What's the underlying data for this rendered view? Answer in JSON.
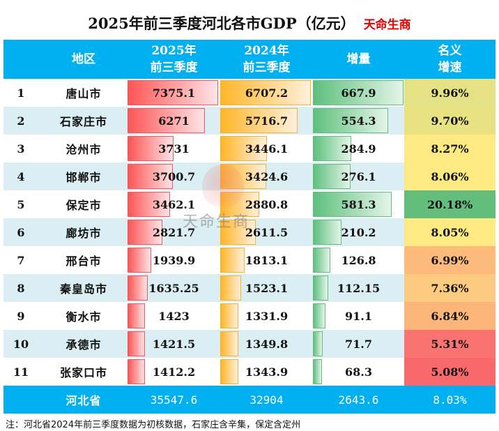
{
  "title": "2025年前三季度河北各市GDP（亿元）",
  "brand": "天命生商",
  "header": {
    "region": "地区",
    "gdp2025_line1": "2025年",
    "gdp2025_line2": "前三季度",
    "gdp2024_line1": "2024年",
    "gdp2024_line2": "前三季度",
    "increase": "增量",
    "growth_line1": "名义",
    "growth_line2": "增速"
  },
  "rows": [
    {
      "rank": "1",
      "city": "唐山市",
      "gdp2025": "7375.1",
      "gdp2024": "6707.2",
      "increase": "667.9",
      "growth": "9.96%",
      "growth_color": "#e5e285"
    },
    {
      "rank": "2",
      "city": "石家庄市",
      "gdp2025": "6271",
      "gdp2024": "5716.7",
      "increase": "554.3",
      "growth": "9.70%",
      "growth_color": "#e8e283"
    },
    {
      "rank": "3",
      "city": "沧州市",
      "gdp2025": "3731",
      "gdp2024": "3446.1",
      "increase": "284.9",
      "growth": "8.27%",
      "growth_color": "#feea83"
    },
    {
      "rank": "4",
      "city": "邯郸市",
      "gdp2025": "3700.7",
      "gdp2024": "3424.6",
      "increase": "276.1",
      "growth": "8.06%",
      "growth_color": "#feea83"
    },
    {
      "rank": "5",
      "city": "保定市",
      "gdp2025": "3462.1",
      "gdp2024": "2880.8",
      "increase": "581.3",
      "growth": "20.18%",
      "growth_color": "#63be7b"
    },
    {
      "rank": "6",
      "city": "廊坊市",
      "gdp2025": "2821.7",
      "gdp2024": "2611.5",
      "increase": "210.2",
      "growth": "8.05%",
      "growth_color": "#feea83"
    },
    {
      "rank": "7",
      "city": "邢台市",
      "gdp2025": "1939.9",
      "gdp2024": "1813.1",
      "increase": "126.8",
      "growth": "6.99%",
      "growth_color": "#fcbb7b"
    },
    {
      "rank": "8",
      "city": "秦皇岛市",
      "gdp2025": "1635.25",
      "gdp2024": "1523.1",
      "increase": "112.15",
      "growth": "7.36%",
      "growth_color": "#fdcb7f"
    },
    {
      "rank": "9",
      "city": "衡水市",
      "gdp2025": "1423",
      "gdp2024": "1331.9",
      "increase": "91.1",
      "growth": "6.84%",
      "growth_color": "#fcb67a"
    },
    {
      "rank": "10",
      "city": "承德市",
      "gdp2025": "1421.5",
      "gdp2024": "1349.8",
      "increase": "71.7",
      "growth": "5.31%",
      "growth_color": "#f97370"
    },
    {
      "rank": "11",
      "city": "张家口市",
      "gdp2025": "1412.2",
      "gdp2024": "1343.9",
      "increase": "68.3",
      "growth": "5.08%",
      "growth_color": "#f8696b"
    }
  ],
  "total": {
    "region": "河北省",
    "gdp2025": "35547.6",
    "gdp2024": "32904",
    "increase": "2643.6",
    "growth": "8.03%"
  },
  "note": "注：河北省2024年前三季度数据为初核数据，石家庄含辛集，保定含定州",
  "watermark": "天命生商",
  "colors": {
    "header_bg": "#00b0f0",
    "alt_row": "#daeef3",
    "bar_2025": "#ff5555",
    "bar_2024": "#ffb628",
    "bar_increase": "#63be7b"
  },
  "chart_data": {
    "type": "table",
    "title": "2025年前三季度河北各市GDP（亿元）",
    "columns": [
      "地区",
      "2025年前三季度",
      "2024年前三季度",
      "增量",
      "名义增速"
    ],
    "categories": [
      "唐山市",
      "石家庄市",
      "沧州市",
      "邯郸市",
      "保定市",
      "廊坊市",
      "邢台市",
      "秦皇岛市",
      "衡水市",
      "承德市",
      "张家口市"
    ],
    "series": [
      {
        "name": "2025年前三季度",
        "values": [
          7375.1,
          6271,
          3731,
          3700.7,
          3462.1,
          2821.7,
          1939.9,
          1635.25,
          1423,
          1421.5,
          1412.2
        ]
      },
      {
        "name": "2024年前三季度",
        "values": [
          6707.2,
          5716.7,
          3446.1,
          3424.6,
          2880.8,
          2611.5,
          1813.1,
          1523.1,
          1331.9,
          1349.8,
          1343.9
        ]
      },
      {
        "name": "增量",
        "values": [
          667.9,
          554.3,
          284.9,
          276.1,
          581.3,
          210.2,
          126.8,
          112.15,
          91.1,
          71.7,
          68.3
        ]
      },
      {
        "name": "名义增速(%)",
        "values": [
          9.96,
          9.7,
          8.27,
          8.06,
          20.18,
          8.05,
          6.99,
          7.36,
          6.84,
          5.31,
          5.08
        ]
      }
    ],
    "total": {
      "region": "河北省",
      "gdp2025": 35547.6,
      "gdp2024": 32904,
      "increase": 2643.6,
      "growth_pct": 8.03
    }
  }
}
